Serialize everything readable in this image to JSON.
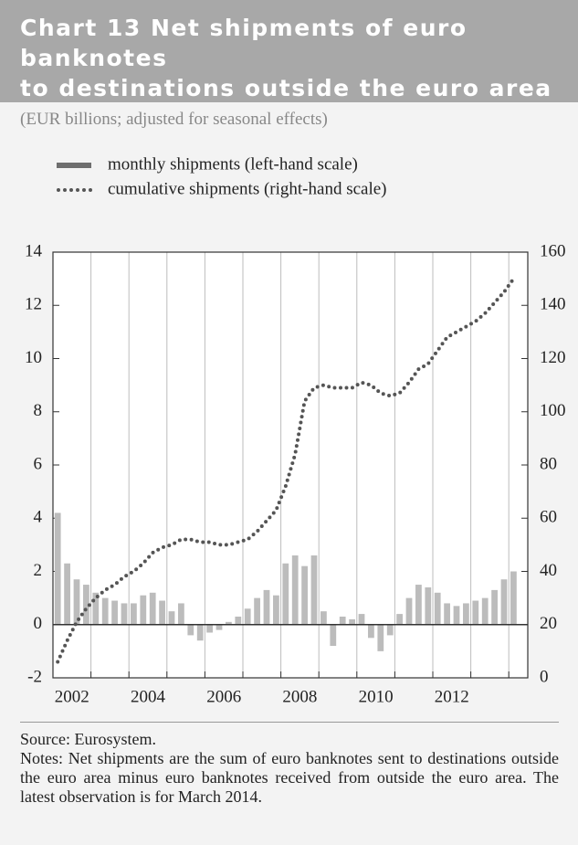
{
  "chart_data": {
    "type": "bar-line",
    "title": [
      "Chart 13 Net shipments of euro banknotes",
      "to destinations outside the euro area"
    ],
    "subtitle": "(EUR billions; adjusted for seasonal effects)",
    "x": [
      2002.125,
      2002.375,
      2002.625,
      2002.875,
      2003.125,
      2003.375,
      2003.625,
      2003.875,
      2004.125,
      2004.375,
      2004.625,
      2004.875,
      2005.125,
      2005.375,
      2005.625,
      2005.875,
      2006.125,
      2006.375,
      2006.625,
      2006.875,
      2007.125,
      2007.375,
      2007.625,
      2007.875,
      2008.125,
      2008.375,
      2008.625,
      2008.875,
      2009.125,
      2009.375,
      2009.625,
      2009.875,
      2010.125,
      2010.375,
      2010.625,
      2010.875,
      2011.125,
      2011.375,
      2011.625,
      2011.875,
      2012.125,
      2012.375,
      2012.625,
      2012.875,
      2013.125,
      2013.375,
      2013.625,
      2013.875,
      2014.125
    ],
    "series": [
      {
        "name": "monthly shipments (left-hand scale)",
        "type": "bar",
        "color": "#bcbcbc",
        "legend_color": "#6e6e6e",
        "values": [
          4.2,
          2.3,
          1.7,
          1.5,
          1.2,
          1.0,
          0.9,
          0.8,
          0.8,
          1.1,
          1.2,
          0.9,
          0.5,
          0.8,
          -0.4,
          -0.6,
          -0.3,
          -0.2,
          0.1,
          0.3,
          0.6,
          1.0,
          1.3,
          1.1,
          2.3,
          2.6,
          2.2,
          2.6,
          0.5,
          -0.8,
          0.3,
          0.2,
          0.4,
          -0.5,
          -1.0,
          -0.4,
          0.4,
          1.0,
          1.5,
          1.4,
          1.2,
          0.8,
          0.7,
          0.8,
          0.9,
          1.0,
          1.3,
          1.7,
          2.0
        ]
      },
      {
        "name": "cumulative shipments (right-hand scale)",
        "type": "line",
        "axis": "y2",
        "style": "dotted",
        "color": "#555555",
        "values": [
          6,
          14,
          21,
          26,
          30,
          33,
          35,
          38,
          40,
          43,
          47,
          49,
          50,
          52,
          52,
          51,
          51,
          50,
          50,
          51,
          52,
          55,
          59,
          63,
          72,
          84,
          104,
          109,
          110,
          109,
          109,
          109,
          111,
          110,
          107,
          106,
          107,
          111,
          116,
          118,
          123,
          128,
          130,
          132,
          134,
          137,
          141,
          145,
          150
        ]
      }
    ],
    "xlim": [
      2002,
      2014.5
    ],
    "xticks": [
      {
        "value": 2002.5,
        "label": "2002"
      },
      {
        "value": 2004.5,
        "label": "2004"
      },
      {
        "value": 2006.5,
        "label": "2006"
      },
      {
        "value": 2008.5,
        "label": "2008"
      },
      {
        "value": 2010.5,
        "label": "2010"
      },
      {
        "value": 2012.5,
        "label": "2012"
      }
    ],
    "xgrid": [
      2003,
      2004,
      2005,
      2006,
      2007,
      2008,
      2009,
      2010,
      2011,
      2012,
      2013,
      2014
    ],
    "ylim": [
      -2,
      14
    ],
    "yticks": [
      -2,
      0,
      2,
      4,
      6,
      8,
      10,
      12,
      14
    ],
    "y2lim": [
      0,
      160
    ],
    "y2ticks": [
      0,
      20,
      40,
      60,
      80,
      100,
      120,
      140,
      160
    ],
    "grid": true,
    "source": "Source: Eurosystem.",
    "notes": "Notes: Net shipments are the sum of euro banknotes sent to destinations outside the euro area minus euro banknotes received from outside the euro area. The latest observation is for March 2014."
  }
}
